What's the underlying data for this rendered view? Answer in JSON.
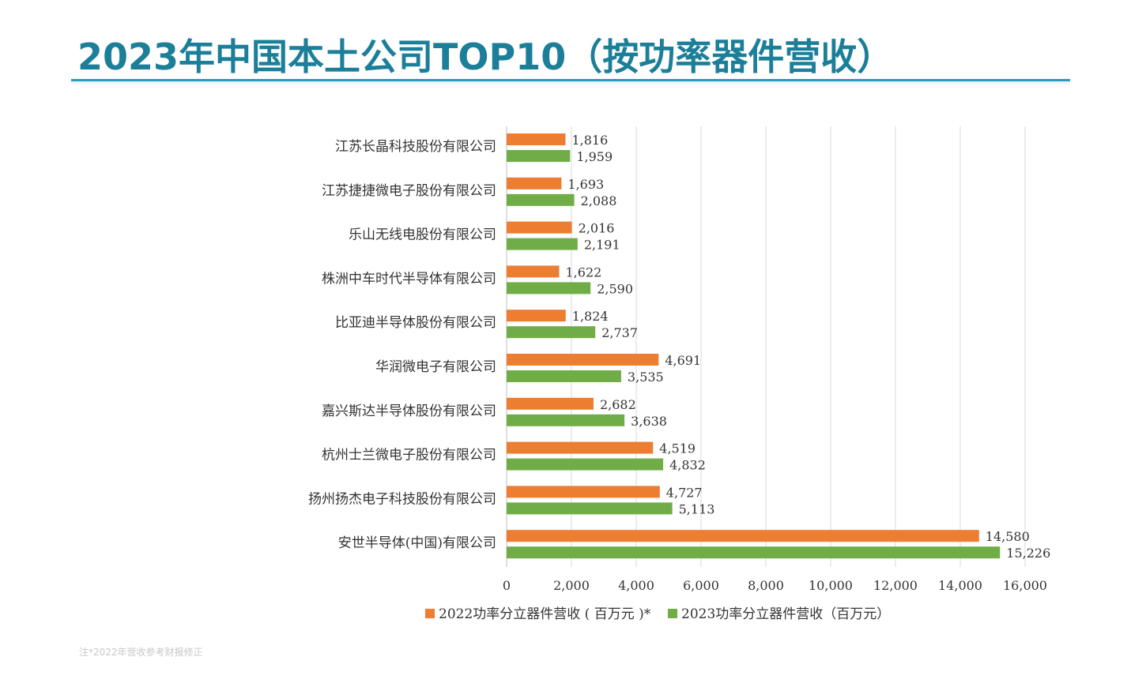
{
  "slide": {
    "title": "2023年中国本土公司TOP10（按功率器件营收）",
    "footnote": "注*2022年营收参考财报修正"
  },
  "colors": {
    "series_2022": "#ed7d31",
    "series_2023": "#70ad47",
    "title": "#1b7f99",
    "title_rule": "#2a9bc0",
    "grid": "#d9d9d9"
  },
  "chart_data": {
    "type": "bar",
    "orientation": "horizontal",
    "categories": [
      "江苏长晶科技股份有限公司",
      "江苏捷捷微电子股份有限公司",
      "乐山无线电股份有限公司",
      "株洲中车时代半导体有限公司",
      "比亚迪半导体股份有限公司",
      "华润微电子有限公司",
      "嘉兴斯达半导体股份有限公司",
      "杭州士兰微电子股份有限公司",
      "扬州扬杰电子科技股份有限公司",
      "安世半导体(中国)有限公司"
    ],
    "series": [
      {
        "name": "2022功率分立器件营收 ( 百万元 )*",
        "values": [
          1816,
          1693,
          2016,
          1622,
          1824,
          4691,
          2682,
          4519,
          4727,
          14580
        ],
        "labels": [
          "1,816",
          "1,693",
          "2,016",
          "1,622",
          "1,824",
          "4,691",
          "2,682",
          "4,519",
          "4,727",
          "14,580"
        ]
      },
      {
        "name": "2023功率分立器件营收（百万元）",
        "values": [
          1959,
          2088,
          2191,
          2590,
          2737,
          3535,
          3638,
          4832,
          5113,
          15226
        ],
        "labels": [
          "1,959",
          "2,088",
          "2,191",
          "2,590",
          "2,737",
          "3,535",
          "3,638",
          "4,832",
          "5,113",
          "15,226"
        ]
      }
    ],
    "xlim": [
      0,
      16000
    ],
    "xticks": [
      0,
      2000,
      4000,
      6000,
      8000,
      10000,
      12000,
      14000,
      16000
    ],
    "xtick_labels": [
      "0",
      "2,000",
      "4,000",
      "6,000",
      "8,000",
      "10,000",
      "12,000",
      "14,000",
      "16,000"
    ],
    "grid": true,
    "legend_position": "bottom"
  }
}
